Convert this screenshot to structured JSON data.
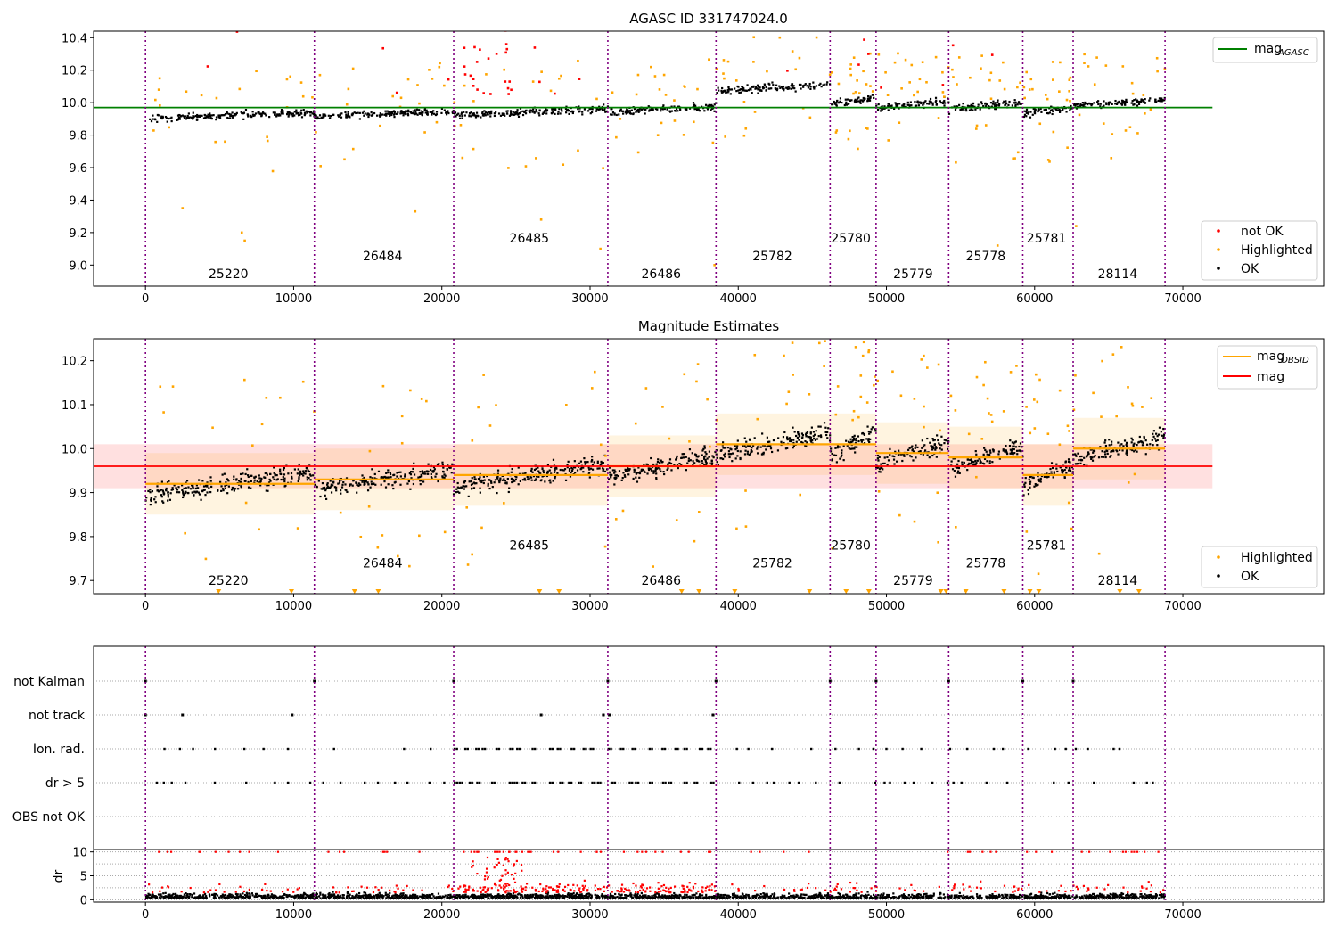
{
  "chart_data": [
    {
      "type": "scatter",
      "title": "AGASC ID 331747024.0",
      "xlim": [
        -3500,
        79500
      ],
      "ylim": [
        8.87,
        10.44
      ],
      "xticks": [
        0,
        10000,
        20000,
        30000,
        40000,
        50000,
        60000,
        70000
      ],
      "yticks": [
        9.0,
        9.2,
        9.4,
        9.6,
        9.8,
        10.0,
        10.2,
        10.4
      ],
      "obsid_boundaries": [
        0,
        11400,
        20800,
        31200,
        38500,
        46200,
        49300,
        54200,
        59200,
        62600,
        68800
      ],
      "obsid_labels": [
        {
          "obsid": "25220",
          "x": 5600,
          "y": 8.92
        },
        {
          "obsid": "26484",
          "x": 16000,
          "y": 9.03
        },
        {
          "obsid": "26485",
          "x": 25900,
          "y": 9.14
        },
        {
          "obsid": "26486",
          "x": 34800,
          "y": 8.92
        },
        {
          "obsid": "25782",
          "x": 42300,
          "y": 9.03
        },
        {
          "obsid": "25780",
          "x": 47600,
          "y": 9.14
        },
        {
          "obsid": "25779",
          "x": 51800,
          "y": 8.92
        },
        {
          "obsid": "25778",
          "x": 56700,
          "y": 9.03
        },
        {
          "obsid": "25781",
          "x": 60800,
          "y": 9.14
        },
        {
          "obsid": "28114",
          "x": 65600,
          "y": 8.92
        }
      ],
      "series": [
        {
          "name": "mag_AGASC",
          "kind": "hline",
          "value": 9.97,
          "x_range": [
            -3500,
            72000
          ],
          "color": "#008000"
        }
      ],
      "segment_means": [
        9.92,
        9.93,
        9.94,
        9.96,
        10.09,
        10.01,
        9.99,
        9.98,
        9.95,
        10.0
      ],
      "legend_upper": [
        {
          "label": "mag",
          "sub": "AGASC",
          "color": "#008000"
        }
      ],
      "legend_lower": [
        {
          "label": "not OK",
          "color": "#ff0000"
        },
        {
          "label": "Highlighted",
          "color": "#ffa500"
        },
        {
          "label": "OK",
          "color": "#000000"
        }
      ],
      "legend_placement": [
        "top-right",
        "bottom-right"
      ]
    },
    {
      "type": "scatter",
      "title": "Magnitude Estimates",
      "xlim": [
        -3500,
        79500
      ],
      "ylim": [
        9.67,
        10.25
      ],
      "xticks": [
        0,
        10000,
        20000,
        30000,
        40000,
        50000,
        60000,
        70000
      ],
      "yticks": [
        9.7,
        9.8,
        9.9,
        10.0,
        10.1,
        10.2
      ],
      "mag": 9.96,
      "mag_band": [
        9.91,
        10.01
      ],
      "mag_x_range": [
        -3500,
        72000
      ],
      "mag_obsid": [
        9.92,
        9.93,
        9.94,
        9.96,
        10.01,
        10.01,
        9.99,
        9.98,
        9.94,
        10.0
      ],
      "obsid_labels": [
        {
          "obsid": "25220",
          "x": 5600,
          "y": 9.69
        },
        {
          "obsid": "26484",
          "x": 16000,
          "y": 9.73
        },
        {
          "obsid": "26485",
          "x": 25900,
          "y": 9.77
        },
        {
          "obsid": "26486",
          "x": 34800,
          "y": 9.69
        },
        {
          "obsid": "25782",
          "x": 42300,
          "y": 9.73
        },
        {
          "obsid": "25780",
          "x": 47600,
          "y": 9.77
        },
        {
          "obsid": "25779",
          "x": 51800,
          "y": 9.69
        },
        {
          "obsid": "25778",
          "x": 56700,
          "y": 9.73
        },
        {
          "obsid": "25781",
          "x": 60800,
          "y": 9.77
        },
        {
          "obsid": "28114",
          "x": 65600,
          "y": 9.69
        }
      ],
      "legend_upper": [
        {
          "label": "mag",
          "sub": "OBSID",
          "color": "#ffa500"
        },
        {
          "label": "mag",
          "sub": "",
          "color": "#ff0000"
        }
      ],
      "legend_lower": [
        {
          "label": "Highlighted",
          "color": "#ffa500"
        },
        {
          "label": "OK",
          "color": "#000000"
        }
      ],
      "legend_placement": [
        "top-right",
        "bottom-right"
      ]
    },
    {
      "type": "scatter",
      "xlim": [
        -3500,
        79500
      ],
      "flag_labels": [
        "not Kalman",
        "not track",
        "Ion. rad.",
        "dr > 5",
        "OBS not OK"
      ],
      "grid": true
    },
    {
      "type": "scatter",
      "ylabel": "dr",
      "xlim": [
        -3500,
        79500
      ],
      "ylim": [
        -0.5,
        10.5
      ],
      "xticks": [
        0,
        10000,
        20000,
        30000,
        40000,
        50000,
        60000,
        70000
      ],
      "yticks": [
        0,
        5,
        10
      ],
      "grid": true,
      "series": [
        {
          "name": "dr",
          "color": "#000000",
          "typical_range": [
            0,
            3
          ]
        },
        {
          "name": "dr (not OK)",
          "color": "#ff0000",
          "clipped_at": 10
        }
      ]
    }
  ]
}
